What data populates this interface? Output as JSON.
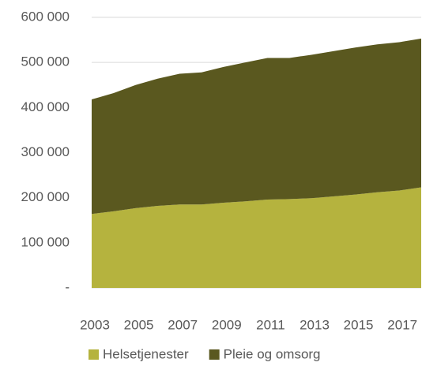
{
  "chart_data": {
    "type": "area",
    "stacked": true,
    "categories": [
      "2003",
      null,
      "2005",
      null,
      "2007",
      null,
      "2009",
      null,
      "2011",
      null,
      "2013",
      null,
      "2015",
      null,
      "2017",
      null
    ],
    "series": [
      {
        "name": "Helsetjenester",
        "color": "#b5b33e",
        "values": [
          164000,
          170000,
          177000,
          182000,
          185000,
          185000,
          189000,
          192000,
          196000,
          197000,
          199000,
          203000,
          207000,
          212000,
          216000,
          223000
        ]
      },
      {
        "name": "Pleie og omsorg",
        "color": "#5a581f",
        "values": [
          254000,
          262000,
          273000,
          282000,
          290000,
          293000,
          301000,
          308000,
          314000,
          313000,
          318000,
          322000,
          326000,
          328000,
          329000,
          330000
        ]
      }
    ],
    "ylim": [
      0,
      600000
    ],
    "yticks": [
      {
        "value": 0,
        "label": "-"
      },
      {
        "value": 100000,
        "label": "100 000"
      },
      {
        "value": 200000,
        "label": "200 000"
      },
      {
        "value": 300000,
        "label": "300 000"
      },
      {
        "value": 400000,
        "label": "400 000"
      },
      {
        "value": 500000,
        "label": "500 000"
      },
      {
        "value": 600000,
        "label": "600 000"
      }
    ],
    "grid": true,
    "legend": "bottom"
  }
}
